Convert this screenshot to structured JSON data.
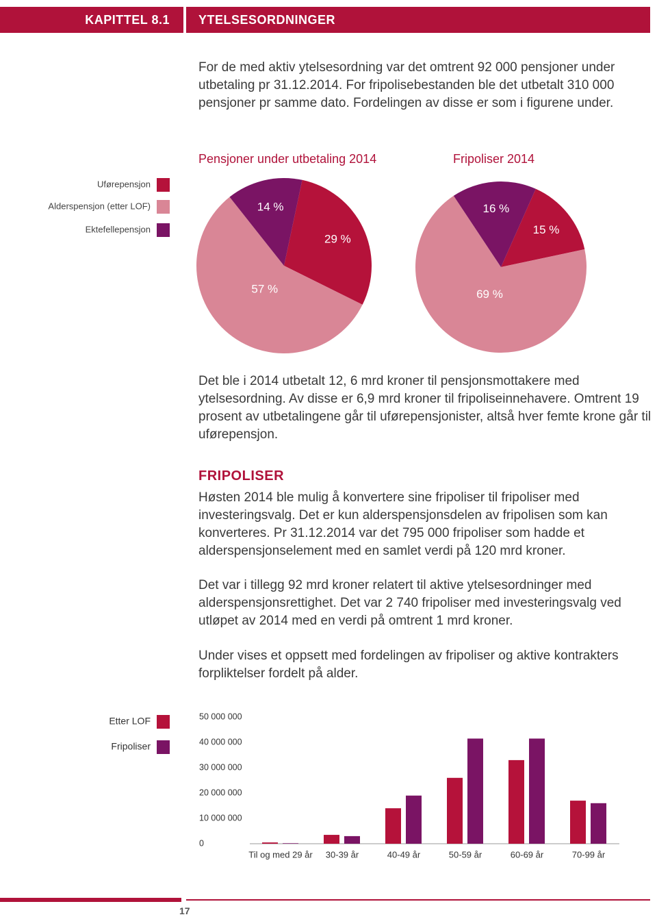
{
  "header": {
    "chapter": "KAPITTEL 8.1",
    "title": "YTELSESORDNINGER"
  },
  "paragraphs": [
    "For de med aktiv ytelsesordning var det omtrent 92 000 pensjoner under utbetaling pr 31.12.2014. For fripolisebestanden ble det utbetalt 310 000 pensjoner pr samme dato. Fordelingen av disse er som i figurene under.",
    "Det ble i 2014 utbetalt 12, 6 mrd kroner til pensjonsmottakere med ytelsesordning. Av disse er 6,9 mrd kroner til fripoliseinnehavere. Omtrent 19 prosent av utbetalingene går til uførepensjonister, altså hver femte krone går til uførepensjon."
  ],
  "section": {
    "heading": "FRIPOLISER",
    "paragraphs": [
      "Høsten 2014 ble mulig å konvertere sine fripoliser til fripoliser med investeringsvalg. Det er kun alderspensjonsdelen av fripolisen som kan konverteres. Pr 31.12.2014 var det 795 000 fripoliser som hadde et alderspensjonselement med en samlet verdi på 120 mrd kroner.",
      "Det var i tillegg 92 mrd kroner relatert til aktive ytelsesordninger med alderspensjonsrettighet. Det var 2 740 fripoliser med investeringsvalg ved utløpet av 2014 med en verdi på omtrent 1 mrd kroner.",
      "Under vises et oppsett med fordelingen av fripoliser og aktive kontrakters forpliktelser fordelt på alder."
    ]
  },
  "chart_data": [
    {
      "type": "pie",
      "title": "Pensjoner under utbetaling 2014",
      "categories": [
        "Uførepensjon",
        "Alderspensjon (etter LOF)",
        "Ektefellepensjon"
      ],
      "values": [
        29,
        57,
        14
      ],
      "value_labels": [
        "29 %",
        "57 %",
        "14 %"
      ],
      "colors": [
        "#b5123a",
        "#d98696",
        "#7a1464"
      ]
    },
    {
      "type": "pie",
      "title": "Fripoliser 2014",
      "values": [
        15,
        69,
        16
      ],
      "value_labels": [
        "15 %",
        "69 %",
        "16 %"
      ],
      "colors": [
        "#b5123a",
        "#d98696",
        "#7a1464"
      ]
    },
    {
      "type": "bar",
      "categories": [
        "Til og med 29 år",
        "30-39 år",
        "40-49 år",
        "50-59 år",
        "60-69 år",
        "70-99 år"
      ],
      "series": [
        {
          "name": "Etter LOF",
          "color": "#b5123a",
          "values": [
            500000,
            3500000,
            14000000,
            26000000,
            33000000,
            17000000
          ]
        },
        {
          "name": "Fripoliser",
          "color": "#7a1464",
          "values": [
            200000,
            3000000,
            19000000,
            41500000,
            41500000,
            16000000
          ]
        }
      ],
      "ylim": [
        0,
        50000000
      ],
      "yticks": [
        0,
        {
          "value": 10000000,
          "label": "10 000 000"
        },
        {
          "value": 20000000,
          "label": "20 000 000"
        },
        {
          "value": 30000000,
          "label": "30 000 000"
        },
        {
          "value": 40000000,
          "label": "40 000 000"
        },
        {
          "value": 50000000,
          "label": "50 000 000"
        }
      ]
    }
  ],
  "page": {
    "number": "17"
  }
}
